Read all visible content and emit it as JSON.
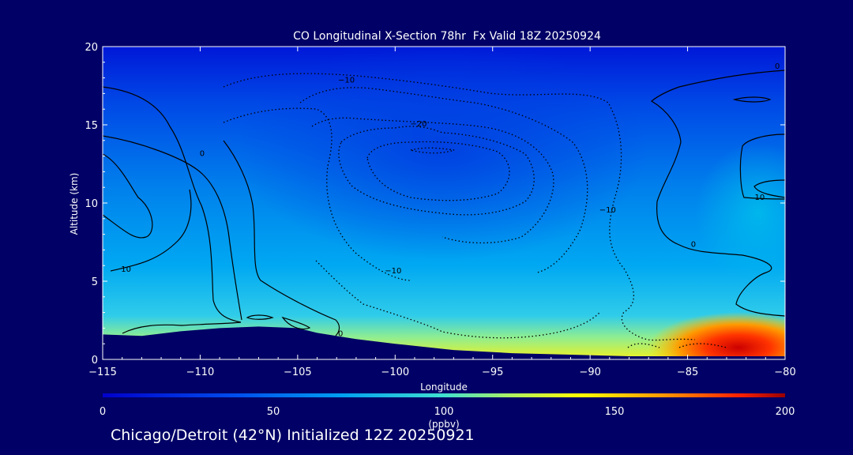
{
  "chart_data": {
    "type": "heatmap",
    "title": "CO Longitudinal X-Section 78hr  Fx Valid 18Z 20250924",
    "xlabel": "Longitude",
    "ylabel": "Altitude (km)",
    "xlim": [
      -115,
      -80
    ],
    "ylim": [
      0,
      20
    ],
    "x_ticks": [
      -115,
      -110,
      -105,
      -100,
      -95,
      -90,
      -85,
      -80
    ],
    "x_tick_labels": [
      "−115",
      "−110",
      "−105",
      "−100",
      "−95",
      "−90",
      "−85",
      "−80"
    ],
    "y_ticks": [
      0,
      5,
      10,
      15,
      20
    ],
    "y_tick_labels": [
      "0",
      "5",
      "10",
      "15",
      "20"
    ],
    "field": "CO mixing ratio",
    "colorbar": {
      "min": 0,
      "max": 200,
      "ticks": [
        0,
        50,
        100,
        150,
        200
      ],
      "tick_labels": [
        "0",
        "50",
        "100",
        "150",
        "200"
      ],
      "units": "(ppbv)"
    },
    "contour_labels": [
      {
        "text": "−10",
        "lon": -102.5,
        "alt": 17.9
      },
      {
        "text": "−20",
        "lon": -98.8,
        "alt": 15.1
      },
      {
        "text": "0",
        "lon": -109.9,
        "alt": 13.2
      },
      {
        "text": "−10",
        "lon": -89.1,
        "alt": 9.6
      },
      {
        "text": "10",
        "lon": -81.3,
        "alt": 10.4
      },
      {
        "text": "0",
        "lon": -80.4,
        "alt": 18.8
      },
      {
        "text": "0",
        "lon": -84.7,
        "alt": 7.4
      },
      {
        "text": "10",
        "lon": -113.8,
        "alt": 5.8
      },
      {
        "text": "−10",
        "lon": -100.1,
        "alt": 5.7
      },
      {
        "text": "0",
        "lon": -102.8,
        "alt": 1.7
      }
    ],
    "terrain": {
      "lon": [
        -115,
        -113,
        -111,
        -109,
        -107,
        -105,
        -104,
        -102,
        -100,
        -97,
        -94,
        -91,
        -88,
        -85,
        -82,
        -80
      ],
      "alt": [
        1.6,
        1.5,
        1.8,
        2.0,
        2.1,
        2.0,
        1.7,
        1.3,
        1.0,
        0.6,
        0.4,
        0.3,
        0.2,
        0.2,
        0.2,
        0.2
      ]
    }
  },
  "footer": "Chicago/Detroit (42°N) Initialized 12Z 20250921"
}
